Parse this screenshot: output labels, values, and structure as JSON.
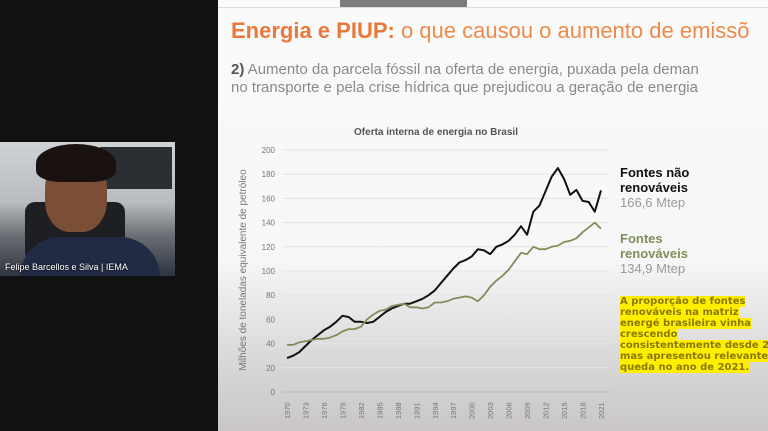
{
  "participant": {
    "name": "Felipe Barcellos e Silva | IEMA"
  },
  "slide": {
    "title_bold": "Energia e PIUP:",
    "title_rest": " o que causou o aumento de emissõ",
    "subtitle_num": "2)",
    "subtitle_line1": " Aumento da parcela fóssil na oferta de energia, puxada pela deman",
    "subtitle_line2": "no transporte e pela crise hídrica que prejudicou a geração de energia",
    "legend": [
      {
        "label_line1": "Fontes não",
        "label_line2": "renováveis",
        "value": "166,6 Mtep",
        "color": "#111111"
      },
      {
        "label_line1": "Fontes",
        "label_line2": "renováveis",
        "value": "134,9 Mtep",
        "color": "#7d8f5a"
      }
    ],
    "note": "A proporção de fontes renováveis na matriz energé brasileira vinha crescendo consistentemente desde 20 mas apresentou relevante queda no ano de 2021.",
    "highlight_color": "#ffee00"
  },
  "chart_data": {
    "type": "line",
    "title": "Oferta interna de energia no Brasil",
    "xlabel": "",
    "ylabel": "Milhões de toneladas equivalente de petróleo",
    "ylim": [
      0,
      200
    ],
    "yticks": [
      0,
      20,
      40,
      60,
      80,
      100,
      120,
      140,
      160,
      180,
      200
    ],
    "xticks": [
      1970,
      1973,
      1976,
      1979,
      1982,
      1985,
      1988,
      1991,
      1994,
      1997,
      2000,
      2003,
      2006,
      2009,
      2012,
      2015,
      2018,
      2021
    ],
    "grid": true,
    "x_start": 1970,
    "x_end": 2021,
    "series": [
      {
        "name": "Fontes não renováveis",
        "color": "#111111",
        "values": [
          28,
          30,
          33,
          38,
          43,
          47,
          51,
          54,
          58,
          63,
          62,
          58,
          58,
          57,
          58,
          62,
          66,
          69,
          71,
          73,
          73,
          75,
          77,
          80,
          84,
          90,
          96,
          102,
          107,
          109,
          112,
          118,
          117,
          114,
          120,
          122,
          125,
          130,
          137,
          130,
          149,
          154,
          166,
          178,
          185,
          176,
          163,
          167,
          158,
          157,
          149,
          166.6
        ]
      },
      {
        "name": "Fontes renováveis",
        "color": "#7d8f5a",
        "values": [
          39,
          39,
          41,
          42,
          43,
          44,
          44,
          45,
          47,
          50,
          52,
          52,
          54,
          60,
          64,
          67,
          68,
          71,
          72,
          73,
          70,
          70,
          69,
          70,
          74,
          74,
          75,
          77,
          78,
          79,
          78,
          75,
          80,
          87,
          92,
          96,
          101,
          108,
          115,
          114,
          120,
          118,
          118,
          120,
          121,
          124,
          125,
          127,
          132,
          136,
          140,
          134.9
        ]
      }
    ]
  }
}
